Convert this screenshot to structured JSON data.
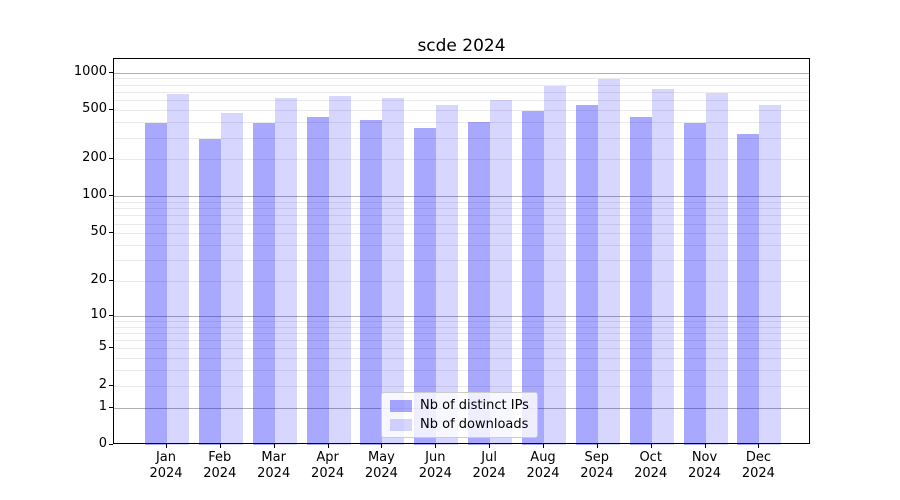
{
  "chart_data": {
    "type": "bar",
    "title": "scde 2024",
    "categories": [
      "Jan",
      "Feb",
      "Mar",
      "Apr",
      "May",
      "Jun",
      "Jul",
      "Aug",
      "Sep",
      "Oct",
      "Nov",
      "Dec"
    ],
    "x_year_label": "2024",
    "series": [
      {
        "name": "Nb of distinct IPs",
        "color": "rgba(0,0,255,0.34)",
        "values": [
          390,
          290,
          395,
          440,
          415,
          360,
          400,
          495,
          550,
          440,
          395,
          320
        ]
      },
      {
        "name": "Nb of downloads",
        "color": "rgba(0,0,255,0.16)",
        "values": [
          675,
          470,
          620,
          655,
          625,
          545,
          600,
          785,
          890,
          745,
          685,
          545
        ]
      }
    ],
    "xlabel": "",
    "ylabel": "",
    "yscale": "log1p",
    "ylim": [
      0,
      1290
    ],
    "y_ticks": [
      1000,
      500,
      200,
      100,
      50,
      20,
      10,
      5,
      2,
      1,
      0
    ],
    "major_grid_values": [
      1,
      10,
      100,
      1000
    ],
    "minor_grid_subs": [
      2,
      3,
      4,
      5,
      6,
      7,
      8,
      9
    ],
    "minor_grid_decades": [
      1,
      10,
      100
    ],
    "grid": true,
    "legend_position": "lower center",
    "colors": {
      "major_grid": "#b0b0b0",
      "minor_grid": "#eaeaea",
      "axis": "#000000",
      "background": "#ffffff"
    }
  }
}
